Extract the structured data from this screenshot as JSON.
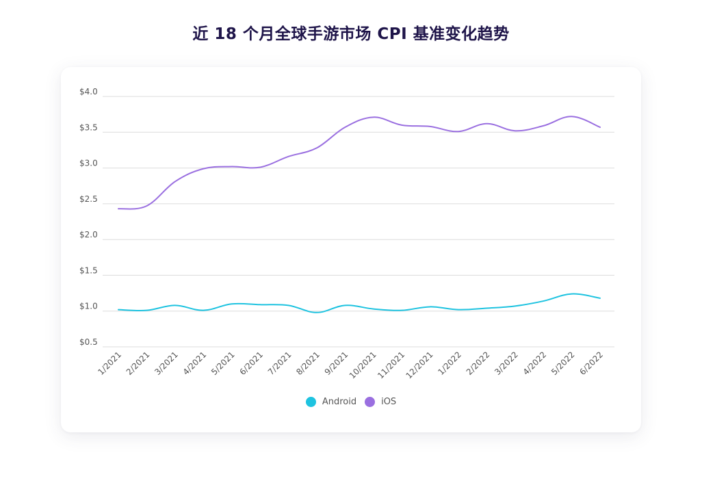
{
  "chart_data": {
    "type": "line",
    "title": "近 18 个月全球手游市场 CPI 基准变化趋势",
    "xlabel": "",
    "ylabel": "",
    "ylim": [
      0.5,
      4.0
    ],
    "yticks": [
      0.5,
      1.0,
      1.5,
      2.0,
      2.5,
      3.0,
      3.5,
      4.0
    ],
    "ytick_labels": [
      "$0.5",
      "$1.0",
      "$1.5",
      "$2.0",
      "$2.5",
      "$3.0",
      "$3.5",
      "$4.0"
    ],
    "grid": true,
    "legend_position": "bottom-center",
    "categories": [
      "1/2021",
      "2/2021",
      "3/2021",
      "4/2021",
      "5/2021",
      "6/2021",
      "7/2021",
      "8/2021",
      "9/2021",
      "10/2021",
      "11/2021",
      "12/2021",
      "1/2022",
      "2/2022",
      "3/2022",
      "4/2022",
      "5/2022",
      "6/2022"
    ],
    "series": [
      {
        "name": "Android",
        "color": "#1ec3e0",
        "values": [
          1.02,
          1.01,
          1.08,
          1.01,
          1.1,
          1.09,
          1.08,
          0.98,
          1.08,
          1.03,
          1.01,
          1.06,
          1.02,
          1.04,
          1.07,
          1.14,
          1.24,
          1.18
        ]
      },
      {
        "name": "iOS",
        "color": "#9a6fe0",
        "values": [
          2.43,
          2.47,
          2.81,
          2.99,
          3.02,
          3.01,
          3.16,
          3.28,
          3.57,
          3.71,
          3.6,
          3.58,
          3.51,
          3.62,
          3.52,
          3.59,
          3.72,
          3.57
        ]
      }
    ]
  }
}
